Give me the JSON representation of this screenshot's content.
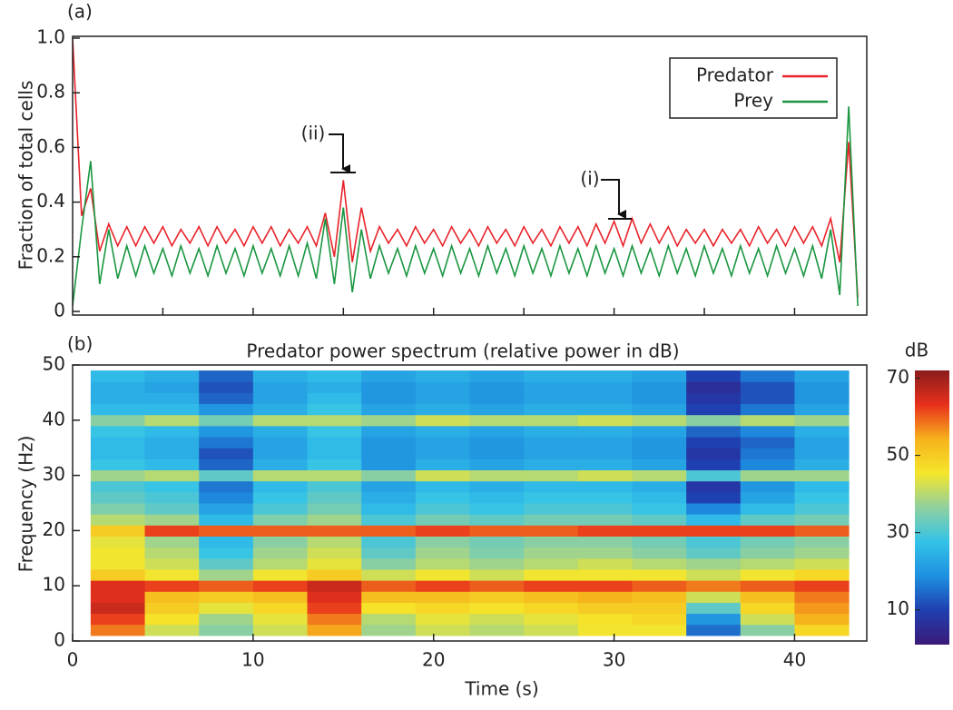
{
  "chart_data": [
    {
      "type": "line",
      "panel_label": "(a)",
      "ylabel": "Fraction of total cells",
      "xlim": [
        0,
        44
      ],
      "ylim": [
        0,
        1
      ],
      "yticks": [
        0,
        0.2,
        0.4,
        0.6,
        0.8,
        {
          "value": 1,
          "label": "1.0"
        }
      ],
      "legend": "upper right",
      "annotations": [
        "(ii)",
        "(i)"
      ],
      "x": [
        0,
        0.5,
        1,
        1.5,
        2,
        2.5,
        3,
        3.5,
        4,
        4.5,
        5,
        5.5,
        6,
        6.5,
        7,
        7.5,
        8,
        8.5,
        9,
        9.5,
        10,
        10.5,
        11,
        11.5,
        12,
        12.5,
        13,
        13.5,
        14,
        14.5,
        15,
        15.5,
        16,
        16.5,
        17,
        17.5,
        18,
        18.5,
        19,
        19.5,
        20,
        20.5,
        21,
        21.5,
        22,
        22.5,
        23,
        23.5,
        24,
        24.5,
        25,
        25.5,
        26,
        26.5,
        27,
        27.5,
        28,
        28.5,
        29,
        29.5,
        30,
        30.5,
        31,
        31.5,
        32,
        32.5,
        33,
        33.5,
        34,
        34.5,
        35,
        35.5,
        36,
        36.5,
        37,
        37.5,
        38,
        38.5,
        39,
        39.5,
        40,
        40.5,
        41,
        41.5,
        42,
        42.5,
        43,
        43.5
      ],
      "series": [
        {
          "name": "Predator",
          "color": "#e8232a",
          "values": [
            1.0,
            0.35,
            0.45,
            0.22,
            0.32,
            0.24,
            0.31,
            0.24,
            0.31,
            0.25,
            0.31,
            0.24,
            0.3,
            0.25,
            0.31,
            0.24,
            0.31,
            0.25,
            0.3,
            0.24,
            0.31,
            0.25,
            0.31,
            0.24,
            0.3,
            0.25,
            0.31,
            0.24,
            0.36,
            0.2,
            0.48,
            0.18,
            0.38,
            0.22,
            0.31,
            0.25,
            0.3,
            0.24,
            0.31,
            0.25,
            0.3,
            0.24,
            0.31,
            0.25,
            0.3,
            0.24,
            0.31,
            0.25,
            0.3,
            0.24,
            0.31,
            0.25,
            0.3,
            0.24,
            0.31,
            0.25,
            0.31,
            0.24,
            0.32,
            0.25,
            0.33,
            0.24,
            0.34,
            0.25,
            0.32,
            0.25,
            0.31,
            0.24,
            0.3,
            0.25,
            0.3,
            0.24,
            0.3,
            0.25,
            0.3,
            0.24,
            0.31,
            0.25,
            0.3,
            0.24,
            0.31,
            0.25,
            0.31,
            0.24,
            0.34,
            0.18,
            0.62,
            0.05
          ]
        },
        {
          "name": "Prey",
          "color": "#1a9641",
          "values": [
            0.02,
            0.3,
            0.55,
            0.1,
            0.3,
            0.12,
            0.24,
            0.13,
            0.24,
            0.14,
            0.23,
            0.13,
            0.24,
            0.14,
            0.23,
            0.13,
            0.24,
            0.14,
            0.23,
            0.13,
            0.24,
            0.14,
            0.23,
            0.13,
            0.24,
            0.13,
            0.25,
            0.12,
            0.34,
            0.1,
            0.38,
            0.07,
            0.3,
            0.12,
            0.24,
            0.14,
            0.23,
            0.13,
            0.24,
            0.14,
            0.23,
            0.13,
            0.24,
            0.14,
            0.23,
            0.13,
            0.24,
            0.14,
            0.23,
            0.13,
            0.24,
            0.14,
            0.23,
            0.13,
            0.24,
            0.14,
            0.23,
            0.13,
            0.24,
            0.14,
            0.23,
            0.13,
            0.24,
            0.14,
            0.23,
            0.13,
            0.24,
            0.14,
            0.23,
            0.13,
            0.24,
            0.14,
            0.23,
            0.13,
            0.24,
            0.14,
            0.23,
            0.13,
            0.24,
            0.14,
            0.23,
            0.13,
            0.24,
            0.12,
            0.3,
            0.06,
            0.75,
            0.02
          ]
        }
      ]
    },
    {
      "type": "heatmap",
      "panel_label": "(b)",
      "title": "Predator power spectrum (relative power in dB)",
      "xlabel": "Time (s)",
      "ylabel": "Frequency (Hz)",
      "xlim": [
        0,
        44
      ],
      "ylim": [
        0,
        50
      ],
      "xticks": [
        0,
        10,
        20,
        30,
        40
      ],
      "yticks": [
        0,
        10,
        20,
        30,
        40,
        50
      ],
      "x": [
        2.5,
        5.5,
        8.5,
        11.5,
        14.5,
        17.5,
        20.5,
        23.5,
        26.5,
        29.5,
        32.5,
        35.5,
        38.5,
        41.5
      ],
      "y": [
        2,
        4,
        6,
        8,
        10,
        12,
        14,
        16,
        18,
        20,
        22,
        24,
        26,
        28,
        30,
        32,
        34,
        36,
        38,
        40,
        42,
        44,
        46,
        48
      ],
      "z": [
        [
          58,
          42,
          36,
          42,
          55,
          38,
          42,
          40,
          42,
          45,
          45,
          15,
          36,
          48
        ],
        [
          62,
          46,
          38,
          44,
          58,
          40,
          44,
          42,
          44,
          46,
          48,
          20,
          42,
          54
        ],
        [
          66,
          50,
          44,
          48,
          62,
          46,
          48,
          46,
          48,
          50,
          50,
          32,
          48,
          56
        ],
        [
          64,
          52,
          50,
          52,
          64,
          52,
          52,
          50,
          52,
          54,
          52,
          42,
          52,
          58
        ],
        [
          64,
          62,
          60,
          62,
          66,
          60,
          62,
          60,
          62,
          62,
          60,
          58,
          60,
          62
        ],
        [
          50,
          45,
          38,
          45,
          50,
          42,
          45,
          42,
          45,
          45,
          45,
          42,
          45,
          48
        ],
        [
          45,
          42,
          32,
          40,
          44,
          36,
          40,
          38,
          40,
          42,
          40,
          38,
          40,
          42
        ],
        [
          45,
          40,
          28,
          38,
          42,
          32,
          38,
          35,
          38,
          38,
          36,
          32,
          36,
          38
        ],
        [
          44,
          38,
          26,
          36,
          40,
          30,
          36,
          34,
          36,
          36,
          34,
          30,
          34,
          36
        ],
        [
          50,
          62,
          60,
          60,
          60,
          60,
          62,
          60,
          60,
          62,
          62,
          62,
          62,
          60
        ],
        [
          40,
          38,
          26,
          35,
          38,
          30,
          34,
          32,
          34,
          34,
          32,
          26,
          32,
          34
        ],
        [
          35,
          32,
          22,
          30,
          34,
          26,
          30,
          28,
          30,
          30,
          28,
          18,
          26,
          30
        ],
        [
          32,
          30,
          18,
          28,
          32,
          24,
          28,
          26,
          28,
          28,
          26,
          10,
          22,
          28
        ],
        [
          30,
          28,
          16,
          26,
          30,
          22,
          26,
          24,
          26,
          26,
          24,
          8,
          20,
          26
        ],
        [
          38,
          40,
          32,
          40,
          40,
          36,
          42,
          40,
          40,
          42,
          40,
          30,
          38,
          38
        ],
        [
          28,
          26,
          14,
          24,
          28,
          20,
          24,
          22,
          24,
          24,
          22,
          10,
          18,
          24
        ],
        [
          26,
          24,
          12,
          22,
          26,
          20,
          22,
          20,
          22,
          22,
          20,
          8,
          16,
          22
        ],
        [
          26,
          24,
          16,
          22,
          26,
          20,
          22,
          20,
          22,
          22,
          20,
          10,
          14,
          22
        ],
        [
          28,
          26,
          20,
          24,
          28,
          22,
          24,
          22,
          24,
          24,
          22,
          14,
          18,
          24
        ],
        [
          36,
          40,
          34,
          40,
          40,
          38,
          42,
          40,
          40,
          42,
          40,
          36,
          40,
          38
        ],
        [
          26,
          26,
          20,
          24,
          28,
          22,
          24,
          22,
          24,
          24,
          22,
          10,
          16,
          22
        ],
        [
          24,
          24,
          14,
          22,
          26,
          20,
          22,
          20,
          22,
          22,
          20,
          8,
          12,
          20
        ],
        [
          24,
          22,
          12,
          22,
          24,
          20,
          22,
          20,
          22,
          22,
          20,
          6,
          12,
          20
        ],
        [
          26,
          24,
          14,
          24,
          26,
          22,
          24,
          22,
          24,
          24,
          22,
          10,
          16,
          22
        ]
      ],
      "colorbar": {
        "label": "dB",
        "clim": [
          1,
          72
        ],
        "ticks": [
          10,
          30,
          50,
          70
        ],
        "colorscale": [
          "#3b1a78",
          "#1f3fb0",
          "#1e90e0",
          "#33c3e8",
          "#8fd0a0",
          "#f5e62a",
          "#f7b21c",
          "#e8301c",
          "#8a1c1c"
        ]
      }
    }
  ]
}
